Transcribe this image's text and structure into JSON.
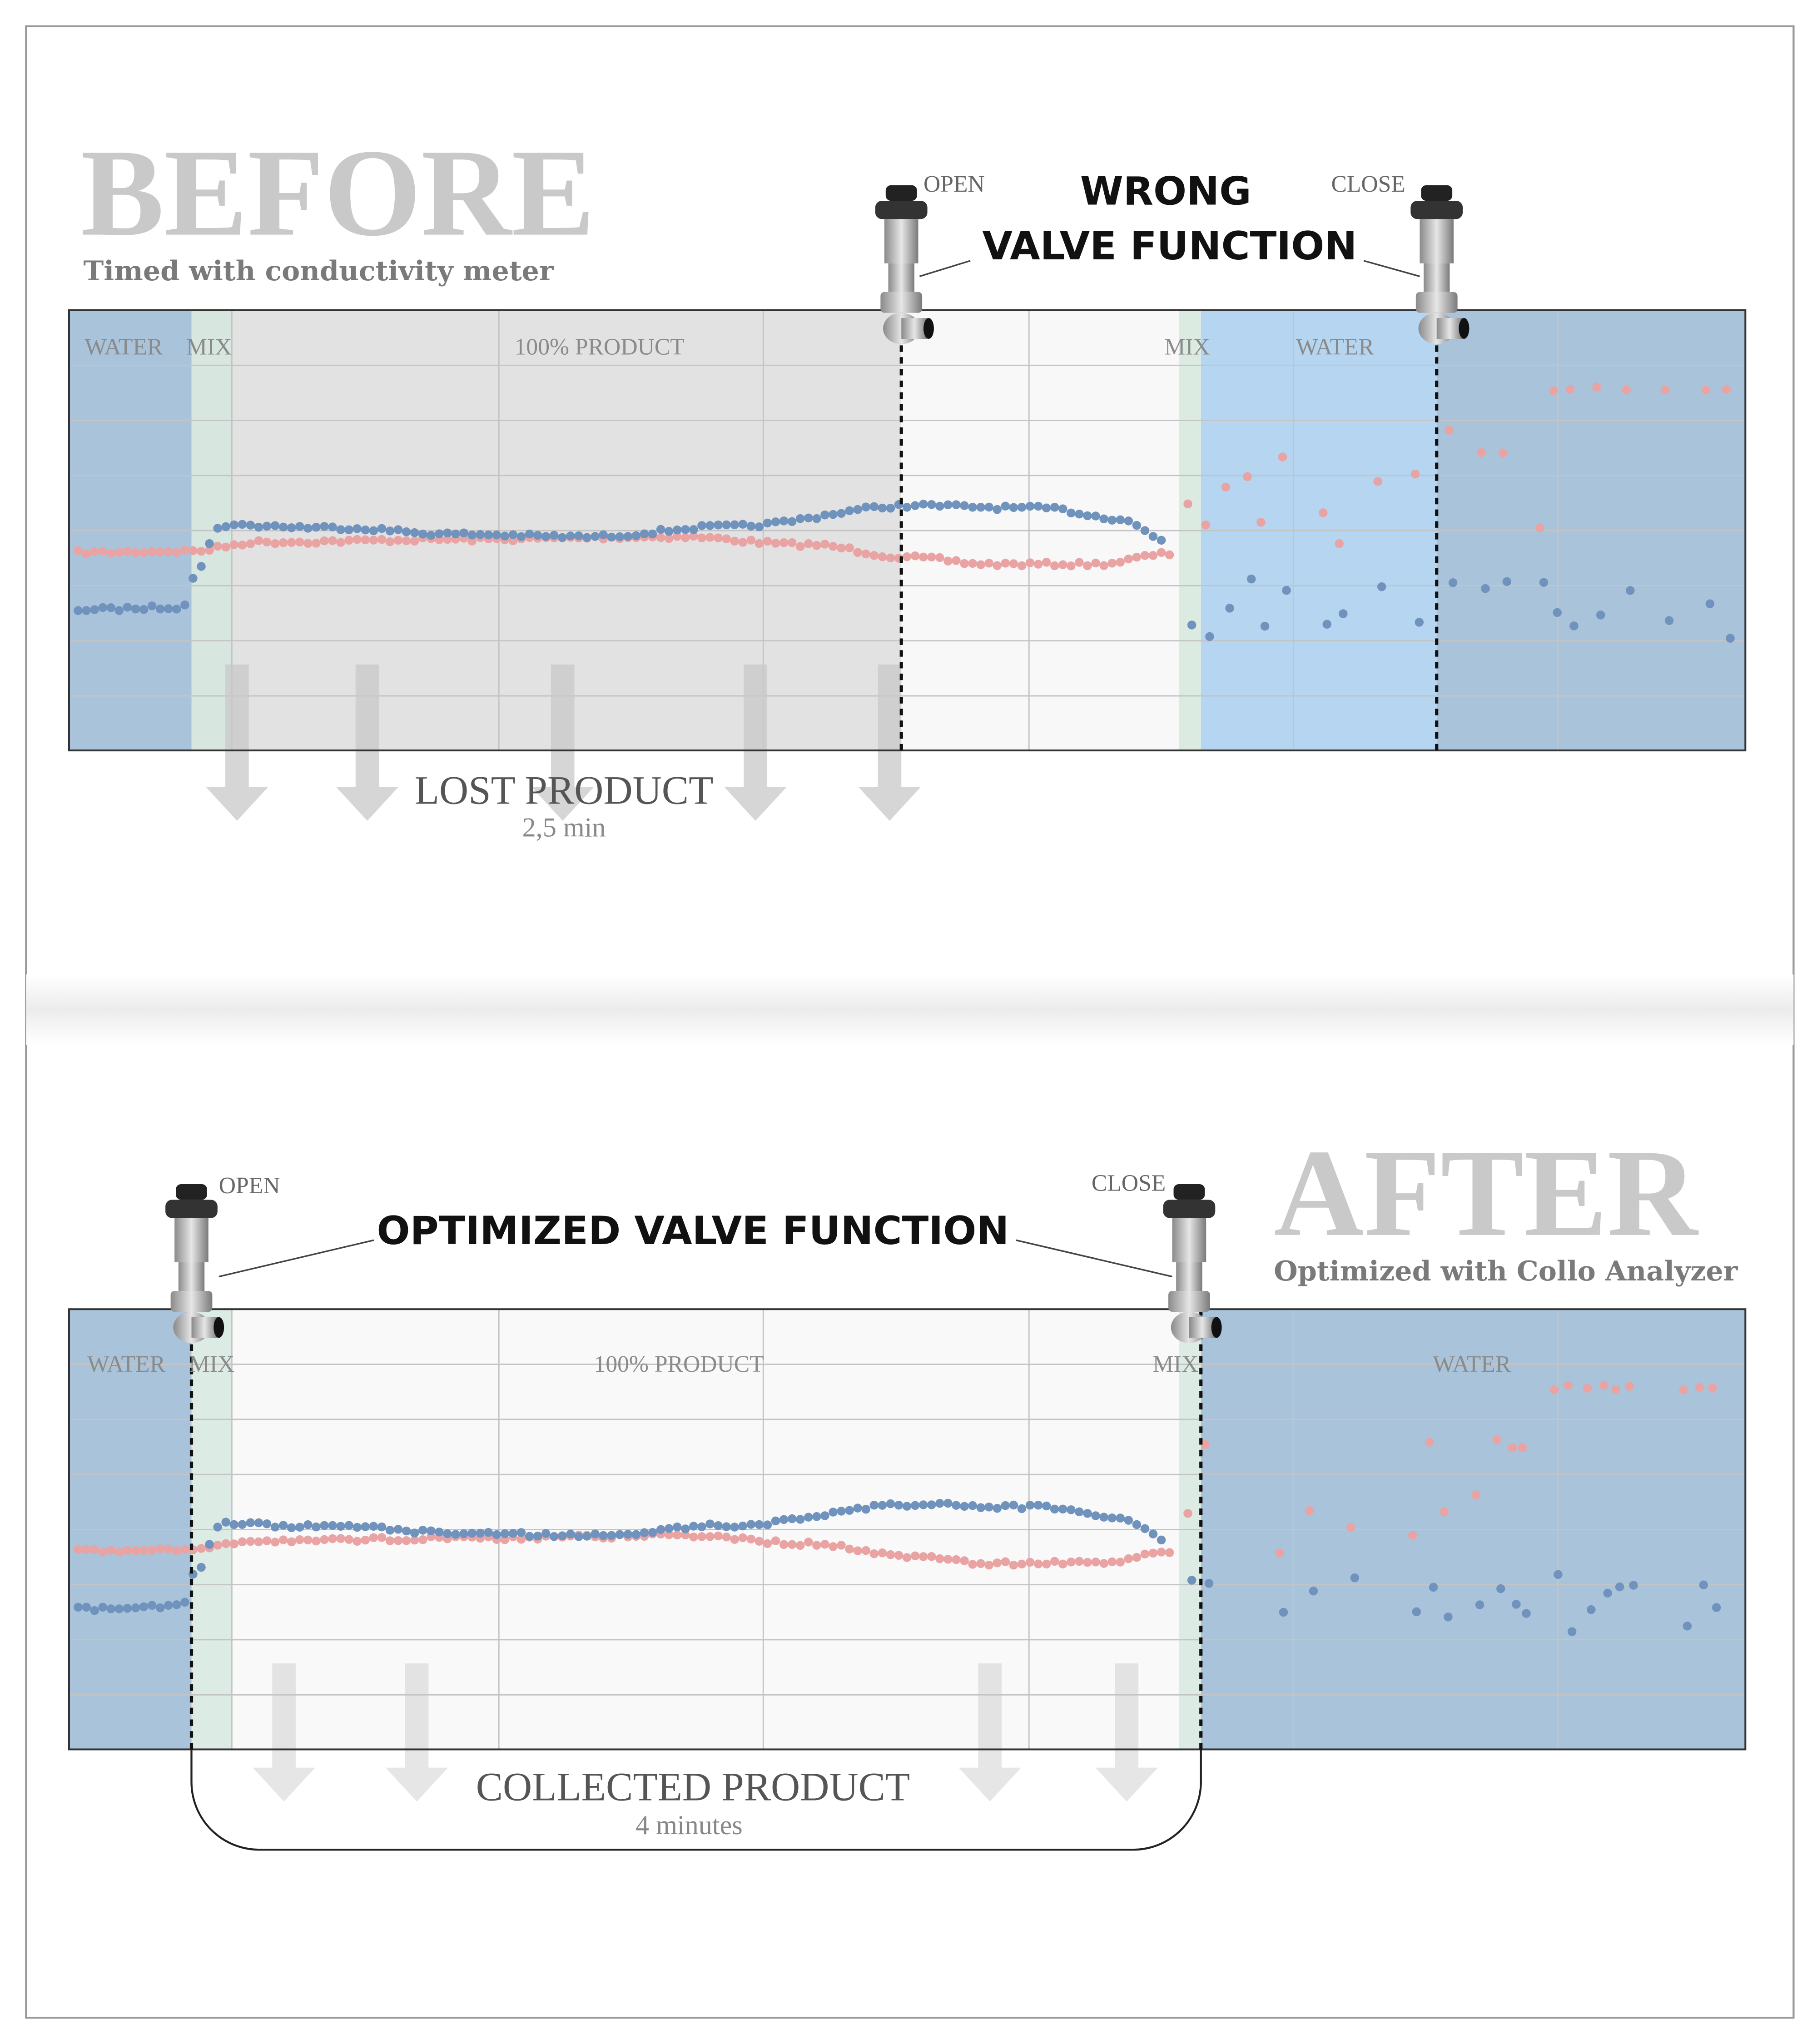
{
  "before": {
    "title": "BEFORE",
    "subtitle": "Timed with conductivity meter",
    "valve_open": "OPEN",
    "valve_close": "CLOSE",
    "callout": [
      "WRONG",
      "VALVE FUNCTION"
    ],
    "zones": [
      "WATER",
      "MIX",
      "100% PRODUCT",
      "MIX",
      "WATER"
    ],
    "result": "LOST PRODUCT",
    "duration": "2,5 min"
  },
  "after": {
    "title": "AFTER",
    "subtitle": "Optimized with Collo Analyzer",
    "valve_open": "OPEN",
    "valve_close": "CLOSE",
    "callout": "OPTIMIZED VALVE FUNCTION",
    "zones": [
      "WATER",
      "MIX",
      "100% PRODUCT",
      "MIX",
      "WATER"
    ],
    "result": "COLLECTED PRODUCT",
    "duration": "4 minutes"
  }
}
